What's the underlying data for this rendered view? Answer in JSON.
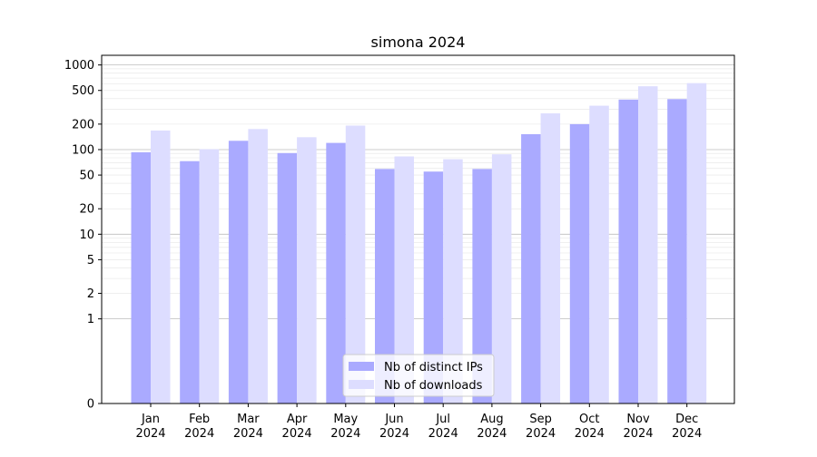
{
  "chart_data": {
    "type": "bar",
    "title": "simona 2024",
    "xlabel": "",
    "ylabel": "",
    "y_scale": "symlog",
    "ylim": [
      0,
      1300
    ],
    "grid": "horizontal",
    "legend_position": "bottom-center",
    "y_ticks": [
      0,
      1,
      2,
      5,
      10,
      20,
      50,
      100,
      200,
      500,
      1000
    ],
    "y_tick_labels": [
      "0",
      "1",
      "2",
      "5",
      "10",
      "20",
      "50",
      "100",
      "200",
      "500",
      "1000"
    ],
    "categories": [
      [
        "Jan",
        "2024"
      ],
      [
        "Feb",
        "2024"
      ],
      [
        "Mar",
        "2024"
      ],
      [
        "Apr",
        "2024"
      ],
      [
        "May",
        "2024"
      ],
      [
        "Jun",
        "2024"
      ],
      [
        "Jul",
        "2024"
      ],
      [
        "Aug",
        "2024"
      ],
      [
        "Sep",
        "2024"
      ],
      [
        "Oct",
        "2024"
      ],
      [
        "Nov",
        "2024"
      ],
      [
        "Dec",
        "2024"
      ]
    ],
    "series": [
      {
        "name": "Nb of distinct IPs",
        "color": "#aaaaff",
        "values": [
          93,
          73,
          127,
          91,
          120,
          59,
          55,
          59,
          152,
          200,
          390,
          395
        ]
      },
      {
        "name": "Nb of downloads",
        "color": "#ddddff",
        "values": [
          168,
          101,
          175,
          140,
          192,
          83,
          77,
          88,
          268,
          330,
          560,
          610
        ]
      }
    ]
  }
}
